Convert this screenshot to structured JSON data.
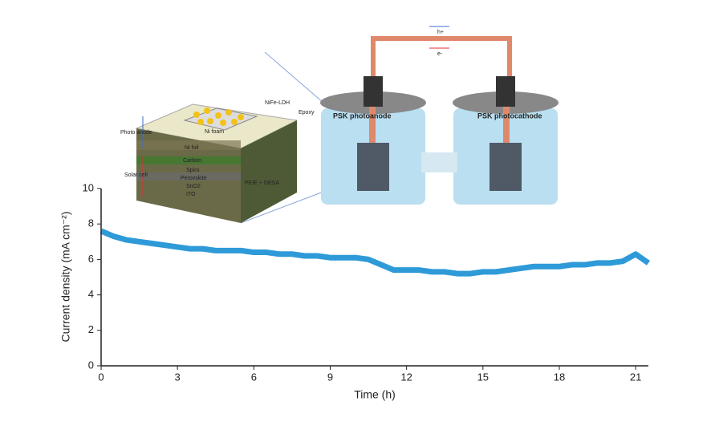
{
  "chart_data": {
    "type": "line",
    "x_label": "Time (h)",
    "y_label": "Current density (mA cm⁻²)",
    "x": [
      0,
      0.5,
      1,
      1.5,
      2,
      2.5,
      3,
      3.5,
      4,
      4.5,
      5,
      5.5,
      6,
      6.5,
      7,
      7.5,
      8,
      8.5,
      9,
      9.5,
      10,
      10.5,
      11,
      11.5,
      12,
      12.5,
      13,
      13.5,
      14,
      14.5,
      15,
      15.5,
      16,
      16.5,
      17,
      17.5,
      18,
      18.5,
      19,
      19.5,
      20,
      20.5,
      21,
      21.5
    ],
    "values": [
      7.6,
      7.3,
      7.1,
      7.0,
      6.9,
      6.8,
      6.7,
      6.6,
      6.6,
      6.5,
      6.5,
      6.5,
      6.4,
      6.4,
      6.3,
      6.3,
      6.2,
      6.2,
      6.1,
      6.1,
      6.1,
      6.0,
      5.7,
      5.4,
      5.4,
      5.4,
      5.3,
      5.3,
      5.2,
      5.2,
      5.3,
      5.3,
      5.4,
      5.5,
      5.6,
      5.6,
      5.6,
      5.7,
      5.7,
      5.8,
      5.8,
      5.9,
      6.3,
      5.8
    ],
    "color": "#2e9ad8",
    "xlim": [
      0,
      21.5
    ],
    "xticks": [
      0,
      3,
      6,
      9,
      12,
      15,
      18,
      21
    ],
    "ylim": [
      0,
      10
    ],
    "yticks": [
      0,
      2,
      4,
      6,
      8,
      10
    ]
  },
  "illustration": {
    "layers": [
      "Ni foam",
      "Ni foil",
      "Carbon",
      "Spiro",
      "Perovskite",
      "SnO2",
      "ITO",
      "PEIE + DESA"
    ],
    "top_labels": [
      "NiFe-LDH",
      "Epoxy"
    ],
    "side_labels": [
      "Photo anode",
      "Solar cell"
    ],
    "cells": [
      "PSK photoanode",
      "PSK photocathode"
    ],
    "carriers": [
      "h+",
      "e-"
    ]
  }
}
